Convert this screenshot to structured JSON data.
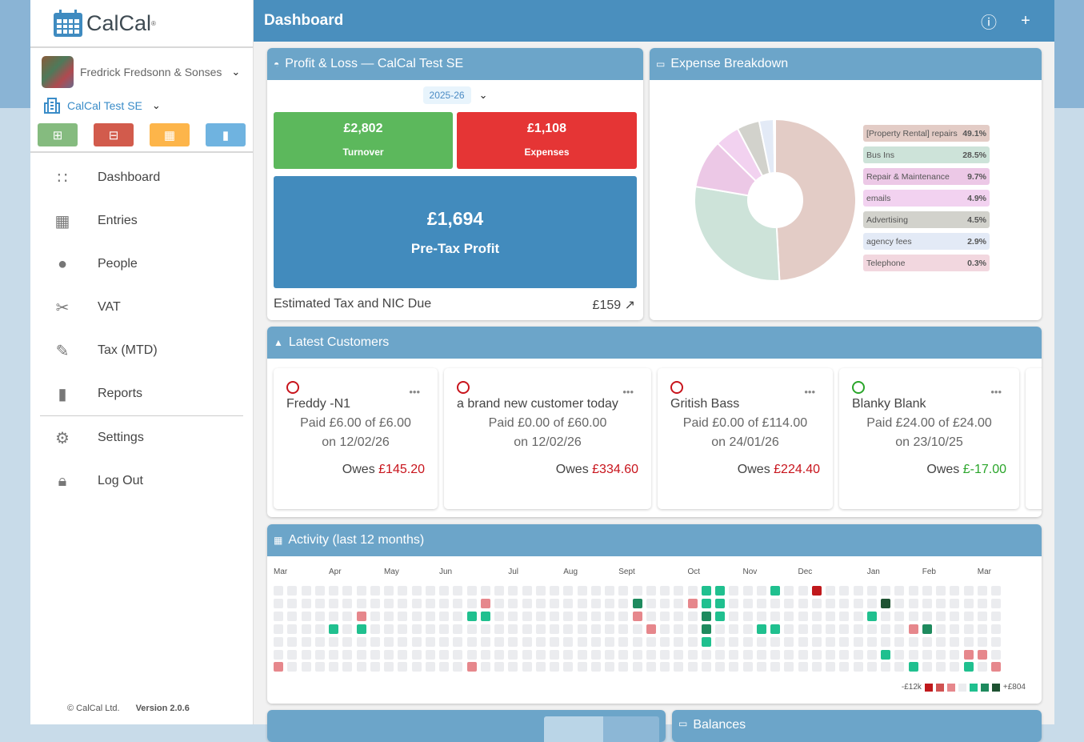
{
  "app": {
    "logo_text": "CalCal",
    "reg": "®"
  },
  "sidebar": {
    "org_name": "Fredrick Fredsonn & Sonses",
    "business_name": "CalCal Test SE",
    "quick_actions": [
      {
        "icon": "calendar-plus-icon",
        "color": "#85bb7f"
      },
      {
        "icon": "calendar-minus-icon",
        "color": "#d25b4c"
      },
      {
        "icon": "calendar-grid-icon",
        "color": "#fdb54a"
      },
      {
        "icon": "file-icon",
        "color": "#6fb3e0"
      }
    ],
    "items": [
      {
        "label": "Dashboard",
        "icon": "grid-icon"
      },
      {
        "label": "Entries",
        "icon": "calendar-icon"
      },
      {
        "label": "People",
        "icon": "person-icon"
      },
      {
        "label": "VAT",
        "icon": "scissors-icon"
      },
      {
        "label": "Tax (MTD)",
        "icon": "edit-icon"
      },
      {
        "label": "Reports",
        "icon": "file-icon"
      }
    ],
    "items2": [
      {
        "label": "Settings",
        "icon": "gear-icon"
      },
      {
        "label": "Log Out",
        "icon": "lock-icon"
      }
    ],
    "copyright": "© CalCal Ltd.",
    "version": "Version 2.0.6"
  },
  "header": {
    "title": "Dashboard"
  },
  "pl": {
    "title": "Profit & Loss — CalCal Test SE",
    "year": "2025-26",
    "turnover": "£2,802",
    "turnover_label": "Turnover",
    "expenses": "£1,108",
    "expenses_label": "Expenses",
    "profit": "£1,694",
    "profit_label": "Pre-Tax Profit",
    "tax_label": "Estimated Tax and NIC Due",
    "tax_value": "£159",
    "colors": {
      "turnover": "#5cb85c",
      "expenses": "#e53535",
      "profit": "#428bbd"
    }
  },
  "expense": {
    "title": "Expense Breakdown",
    "chart_data": {
      "type": "pie",
      "donut": true,
      "categories": [
        "[Property Rental] repairs",
        "Bus Ins",
        "Repair & Maintenance",
        "emails",
        "Advertising",
        "agency fees",
        "Telephone"
      ],
      "values": [
        49.1,
        28.5,
        9.7,
        4.9,
        4.5,
        2.9,
        0.3
      ],
      "labels": [
        "49.1%",
        "28.5%",
        "9.7%",
        "4.9%",
        "4.5%",
        "2.9%",
        "0.3%"
      ],
      "colors": [
        "#e3ccc6",
        "#cde3d9",
        "#ecc8e6",
        "#f2d2f0",
        "#d2d2cc",
        "#e3eaf6",
        "#f2d7df"
      ],
      "legend": "right"
    }
  },
  "customers": {
    "title": "Latest Customers",
    "items": [
      {
        "name": "Freddy -N1",
        "paid": "Paid £6.00 of £6.00",
        "date": "on 12/02/26",
        "owes_label": "Owes",
        "owes": "£145.20",
        "status": "red"
      },
      {
        "name": "a brand new customer today",
        "paid": "Paid £0.00 of £60.00",
        "date": "on 12/02/26",
        "owes_label": "Owes",
        "owes": "£334.60",
        "status": "red"
      },
      {
        "name": "Gritish Bass",
        "paid": "Paid £0.00 of £114.00",
        "date": "on 24/01/26",
        "owes_label": "Owes",
        "owes": "£224.40",
        "status": "red"
      },
      {
        "name": "Blanky Blank",
        "paid": "Paid £24.00 of £24.00",
        "date": "on 23/10/25",
        "owes_label": "Owes",
        "owes": "£-17.00",
        "status": "green"
      }
    ]
  },
  "activity": {
    "title": "Activity (last 12 months)",
    "months": [
      {
        "label": "Mar",
        "week": 0
      },
      {
        "label": "Apr",
        "week": 4
      },
      {
        "label": "May",
        "week": 8
      },
      {
        "label": "Jun",
        "week": 12
      },
      {
        "label": "Jul",
        "week": 17
      },
      {
        "label": "Aug",
        "week": 21
      },
      {
        "label": "Sept",
        "week": 25
      },
      {
        "label": "Oct",
        "week": 30
      },
      {
        "label": "Nov",
        "week": 34
      },
      {
        "label": "Dec",
        "week": 38
      },
      {
        "label": "Jan",
        "week": 43
      },
      {
        "label": "Feb",
        "week": 47
      },
      {
        "label": "Mar",
        "week": 51
      }
    ],
    "cells": [
      [
        0,
        6,
        -1
      ],
      [
        4,
        3,
        1
      ],
      [
        6,
        2,
        -1
      ],
      [
        6,
        3,
        1
      ],
      [
        14,
        2,
        1
      ],
      [
        15,
        1,
        -1
      ],
      [
        15,
        2,
        1
      ],
      [
        14,
        6,
        -1
      ],
      [
        26,
        1,
        2
      ],
      [
        26,
        2,
        -1
      ],
      [
        27,
        3,
        -1
      ],
      [
        30,
        1,
        -1
      ],
      [
        31,
        0,
        1
      ],
      [
        32,
        0,
        1
      ],
      [
        31,
        1,
        1
      ],
      [
        32,
        1,
        1
      ],
      [
        31,
        2,
        2
      ],
      [
        32,
        2,
        1
      ],
      [
        31,
        3,
        2
      ],
      [
        31,
        4,
        1
      ],
      [
        35,
        3,
        1
      ],
      [
        36,
        3,
        1
      ],
      [
        36,
        0,
        1
      ],
      [
        39,
        0,
        -3
      ],
      [
        44,
        1,
        3
      ],
      [
        43,
        2,
        1
      ],
      [
        44,
        5,
        1
      ],
      [
        46,
        3,
        -1
      ],
      [
        47,
        3,
        2
      ],
      [
        46,
        6,
        1
      ],
      [
        50,
        5,
        -1
      ],
      [
        51,
        5,
        -1
      ],
      [
        50,
        6,
        1
      ],
      [
        52,
        6,
        -1
      ]
    ],
    "scale_min": "-£12k",
    "scale_max": "+£804",
    "scale_colors": [
      "#c0191c",
      "#d05252",
      "#e6878c",
      "#ebecef",
      "#20c08f",
      "#1e8a5e",
      "#1e5232"
    ]
  },
  "balances": {
    "title": "Balances"
  }
}
